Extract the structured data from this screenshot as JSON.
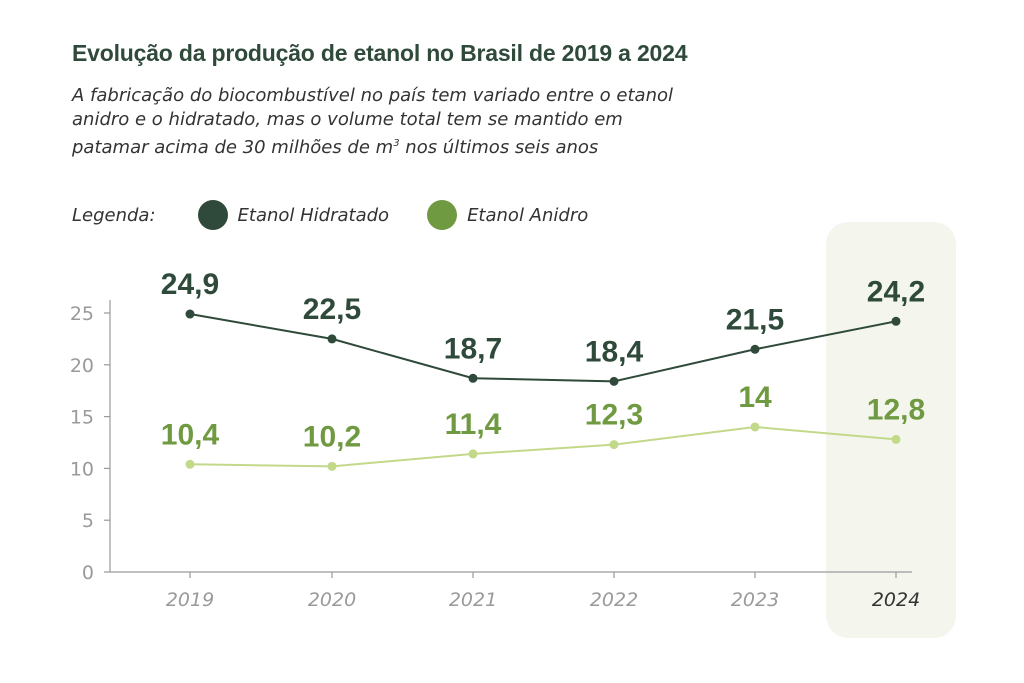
{
  "title": "Evolução da produção de etanol no Brasil de 2019 a 2024",
  "subtitle": {
    "line1": "A fabricação do biocombustível no país tem variado entre o etanol",
    "line2": "anidro e o hidratado, mas o volume total tem se mantido em",
    "line3_pre": "patamar acima de 30 milhões de m",
    "line3_sup": "3",
    "line3_post": " nos últimos seis anos"
  },
  "legend": {
    "label": "Legenda:",
    "items": [
      {
        "name": "Etanol Hidratado",
        "color": "#2f4a3a"
      },
      {
        "name": "Etanol Anidro",
        "color": "#6f9a41"
      }
    ]
  },
  "chart_data": {
    "type": "line",
    "x": [
      "2019",
      "2020",
      "2021",
      "2022",
      "2023",
      "2024"
    ],
    "series": [
      {
        "name": "Etanol Hidratado",
        "values": [
          24.9,
          22.5,
          18.7,
          18.4,
          21.5,
          24.2
        ],
        "labels": [
          "24,9",
          "22,5",
          "18,7",
          "18,4",
          "21,5",
          "24,2"
        ],
        "line_color": "#2f4a3a",
        "label_color": "#2f4a3a"
      },
      {
        "name": "Etanol Anidro",
        "values": [
          10.4,
          10.2,
          11.4,
          12.3,
          14,
          12.8
        ],
        "labels": [
          "10,4",
          "10,2",
          "11,4",
          "12,3",
          "14",
          "12,8"
        ],
        "line_color": "#c3d98a",
        "label_color": "#6f9a41"
      }
    ],
    "ylim": [
      0,
      25
    ],
    "yticks": [
      "0",
      "5",
      "10",
      "15",
      "20",
      "25"
    ],
    "highlight_category": "2024",
    "highlight_color": "#f4f6ee",
    "grid": false
  }
}
